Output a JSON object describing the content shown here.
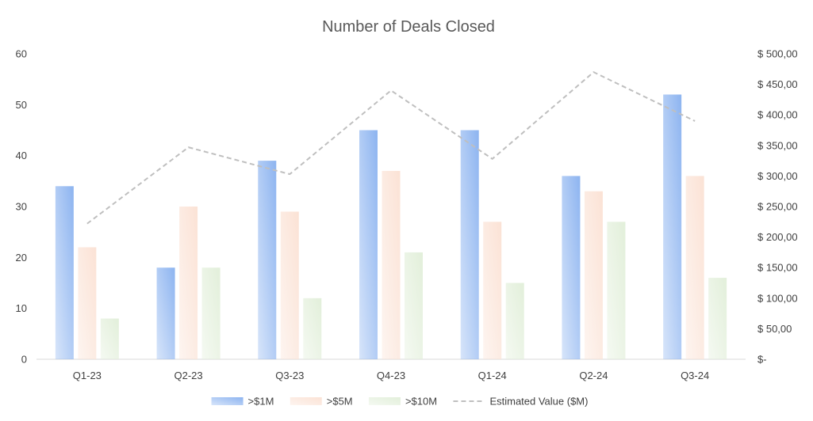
{
  "chart_data": {
    "type": "bar",
    "title": "Number of Deals Closed",
    "categories": [
      "Q1-23",
      "Q2-23",
      "Q3-23",
      "Q4-23",
      "Q1-24",
      "Q2-24",
      "Q3-24"
    ],
    "series": [
      {
        "name": ">$1M",
        "type": "bar",
        "axis": "left",
        "values": [
          34,
          18,
          39,
          45,
          45,
          36,
          52
        ],
        "color": "#8db4f0"
      },
      {
        "name": ">$5M",
        "type": "bar",
        "axis": "left",
        "values": [
          22,
          30,
          29,
          37,
          27,
          33,
          36
        ],
        "color": "#fbe2d5"
      },
      {
        "name": ">$10M",
        "type": "bar",
        "axis": "left",
        "values": [
          8,
          18,
          12,
          21,
          15,
          27,
          16
        ],
        "color": "#e2efda"
      },
      {
        "name": "Estimated Value ($M)",
        "type": "line",
        "axis": "right",
        "style": "dashed",
        "values": [
          222,
          347,
          303,
          440,
          328,
          470,
          390
        ],
        "color": "#bfbfbf"
      }
    ],
    "y_left": {
      "ylim": [
        0,
        60
      ],
      "ticks": [
        "0",
        "10",
        "20",
        "30",
        "40",
        "50",
        "60"
      ]
    },
    "y_right": {
      "ylim": [
        0,
        500
      ],
      "ticks": [
        "$-",
        "$ 50,00",
        "$ 100,00",
        "$ 150,00",
        "$ 200,00",
        "$ 250,00",
        "$ 300,00",
        "$ 350,00",
        "$ 400,00",
        "$ 450,00",
        "$ 500,00"
      ]
    },
    "grid": false,
    "legend": "bottom"
  }
}
